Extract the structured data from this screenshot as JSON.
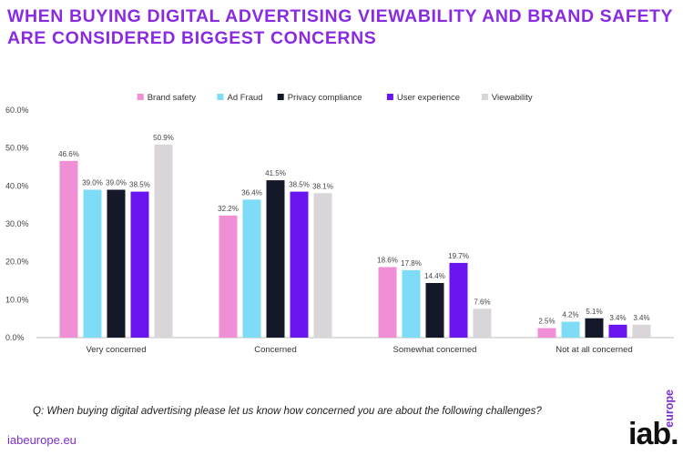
{
  "title": "WHEN BUYING DIGITAL ADVERTISING VIEWABILITY AND BRAND SAFETY ARE CONSIDERED BIGGEST CONCERNS",
  "footer": {
    "question": "Q: When buying digital advertising please let us know how concerned you are about the following challenges?",
    "site": "iabeurope.eu",
    "logo_main": "iab.",
    "logo_sub": "europe"
  },
  "chart_data": {
    "type": "bar",
    "categories": [
      "Very concerned",
      "Concerned",
      "Somewhat concerned",
      "Not at all concerned"
    ],
    "series": [
      {
        "name": "Brand safety",
        "color": "#f08fd6",
        "values": [
          46.6,
          32.2,
          18.6,
          2.5
        ],
        "labels": [
          "46.6%",
          "32.2%",
          "18.6%",
          "2.5%"
        ]
      },
      {
        "name": "Ad Fraud",
        "color": "#7fdcf7",
        "values": [
          39.0,
          36.4,
          17.8,
          4.2
        ],
        "labels": [
          "39.0%",
          "36.4%",
          "17.8%",
          "4.2%"
        ]
      },
      {
        "name": "Privacy compliance",
        "color": "#141828",
        "values": [
          39.0,
          41.5,
          14.4,
          5.1
        ],
        "labels": [
          "39.0%",
          "41.5%",
          "14.4%",
          "5.1%"
        ]
      },
      {
        "name": "User experience",
        "color": "#6a14f0",
        "values": [
          38.5,
          38.5,
          19.7,
          3.4
        ],
        "labels": [
          "38.5%",
          "38.5%",
          "19.7%",
          "3.4%"
        ]
      },
      {
        "name": "Viewability",
        "color": "#d9d5d8",
        "values": [
          50.9,
          38.1,
          7.6,
          3.4
        ],
        "labels": [
          "50.9%",
          "38.1%",
          "7.6%",
          "3.4%"
        ]
      }
    ],
    "yticks": [
      "0.0%",
      "10.0%",
      "20.0%",
      "30.0%",
      "40.0%",
      "50.0%",
      "60.0%"
    ],
    "ylim": [
      0,
      60
    ],
    "grid": false,
    "legend_position": "top-center"
  }
}
